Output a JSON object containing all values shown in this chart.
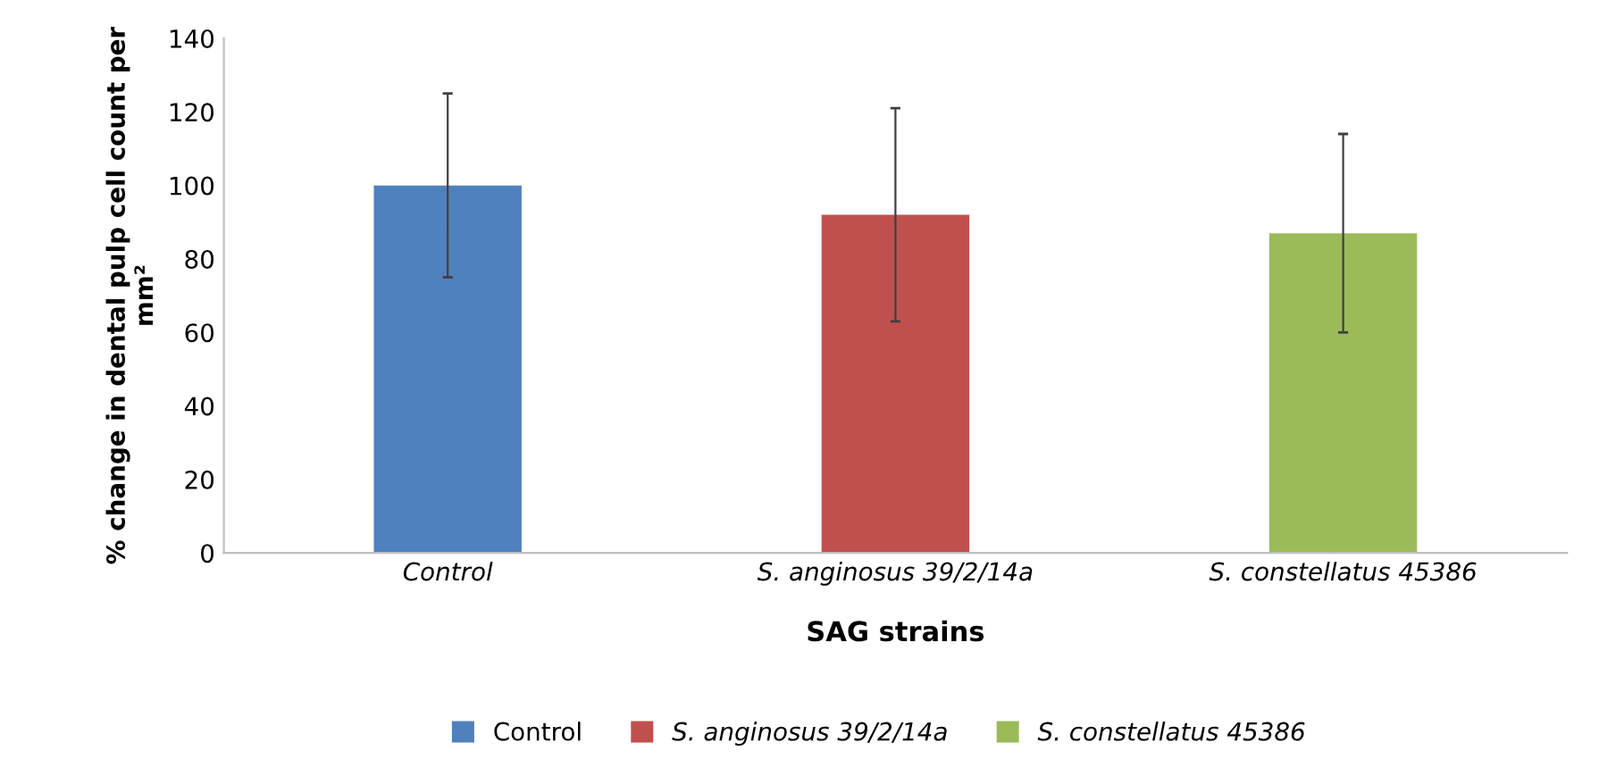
{
  "chart_data": {
    "type": "bar",
    "xlabel": "SAG strains",
    "ylabel": "% change in dental pulp cell count per mm²",
    "categories": [
      "Control",
      "S. anginosus 39/2/14a",
      "S. constellatus 45386"
    ],
    "series": [
      {
        "name": "Control",
        "color": "#4f81bd",
        "values": [
          100,
          null,
          null
        ],
        "errors": [
          25,
          null,
          null
        ]
      },
      {
        "name": "S. anginosus 39/2/14a",
        "color": "#c0504d",
        "values": [
          null,
          92,
          null
        ],
        "errors": [
          null,
          29,
          null
        ]
      },
      {
        "name": "S. constellatus 45386",
        "color": "#9bbb59",
        "values": [
          null,
          null,
          87
        ],
        "errors": [
          null,
          null,
          27
        ]
      }
    ],
    "ylim": [
      0,
      140
    ],
    "yticks": [
      0,
      20,
      40,
      60,
      80,
      100,
      120,
      140
    ],
    "grid": false,
    "legend": "bottom"
  }
}
